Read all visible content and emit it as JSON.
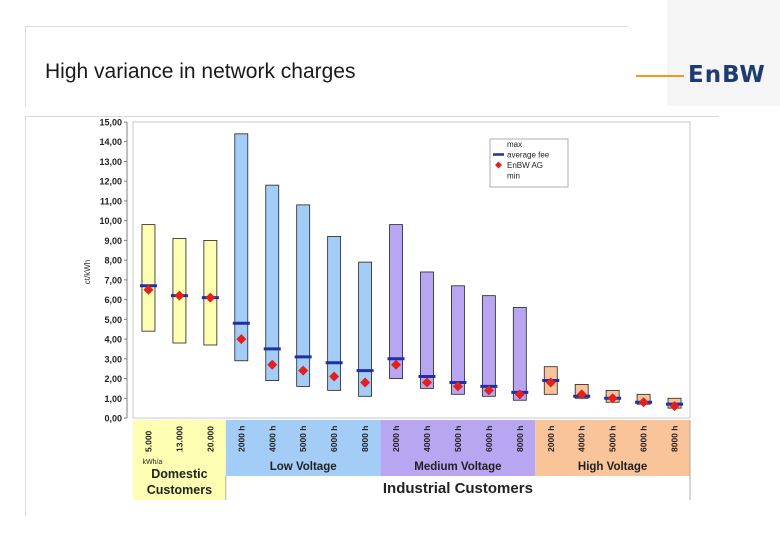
{
  "slide": {
    "title": "High variance in network charges",
    "logo_text": "EnBW"
  },
  "colors": {
    "domestic": "#fefeb2",
    "low_voltage": "#a3cdf6",
    "medium_voltage": "#b9a6f2",
    "high_voltage": "#f9c49a",
    "average_fee": "#1f2fa6",
    "enbw_marker": "#e3211c",
    "logo_accent": "#f29a1b",
    "logo_text": "#1f3b73"
  },
  "chart_data": {
    "type": "bar",
    "title": "",
    "ylabel": "ct/kWh",
    "ylim": [
      0,
      15
    ],
    "yticks": [
      "0,00",
      "1,00",
      "2,00",
      "3,00",
      "4,00",
      "5,00",
      "6,00",
      "7,00",
      "8,00",
      "9,00",
      "10,00",
      "11,00",
      "12,00",
      "13,00",
      "14,00",
      "15,00"
    ],
    "grid": false,
    "legend_position": "top-right",
    "legend": [
      {
        "key": "max",
        "label": "max"
      },
      {
        "key": "avg",
        "label": "average fee"
      },
      {
        "key": "enbw",
        "label": "EnBW AG"
      },
      {
        "key": "min",
        "label": "min"
      }
    ],
    "categories": [
      "5.000",
      "13.000",
      "20.000",
      "2000 h",
      "4000 h",
      "5000 h",
      "6000 h",
      "8000 h",
      "2000 h",
      "4000 h",
      "5000 h",
      "6000 h",
      "8000 h",
      "2000 h",
      "4000 h",
      "5000 h",
      "6000 h",
      "8000 h"
    ],
    "category_group": [
      "domestic",
      "domestic",
      "domestic",
      "low",
      "low",
      "low",
      "low",
      "low",
      "medium",
      "medium",
      "medium",
      "medium",
      "medium",
      "high",
      "high",
      "high",
      "high",
      "high"
    ],
    "max": [
      9.8,
      9.1,
      9.0,
      14.4,
      11.8,
      10.8,
      9.2,
      7.9,
      9.8,
      7.4,
      6.7,
      6.2,
      5.6,
      2.6,
      1.7,
      1.4,
      1.2,
      1.0
    ],
    "min": [
      4.4,
      3.8,
      3.7,
      2.9,
      1.9,
      1.6,
      1.4,
      1.1,
      2.0,
      1.5,
      1.2,
      1.1,
      0.9,
      1.2,
      1.0,
      0.8,
      0.7,
      0.5
    ],
    "average_fee": [
      6.7,
      6.2,
      6.1,
      4.8,
      3.5,
      3.1,
      2.8,
      2.4,
      3.0,
      2.1,
      1.8,
      1.6,
      1.3,
      1.9,
      1.1,
      1.0,
      0.8,
      0.7
    ],
    "enbw_ag": [
      6.5,
      6.2,
      6.1,
      4.0,
      2.7,
      2.4,
      2.1,
      1.8,
      2.7,
      1.8,
      1.6,
      1.4,
      1.2,
      1.8,
      1.2,
      1.0,
      0.8,
      0.6
    ],
    "domestic_unit": "kWh/a",
    "groups": [
      {
        "key": "domestic",
        "label": "Domestic Customers"
      },
      {
        "key": "low",
        "label": "Low Voltage"
      },
      {
        "key": "medium",
        "label": "Medium Voltage"
      },
      {
        "key": "high",
        "label": "High Voltage"
      }
    ],
    "industrial_label": "Industrial Customers"
  }
}
